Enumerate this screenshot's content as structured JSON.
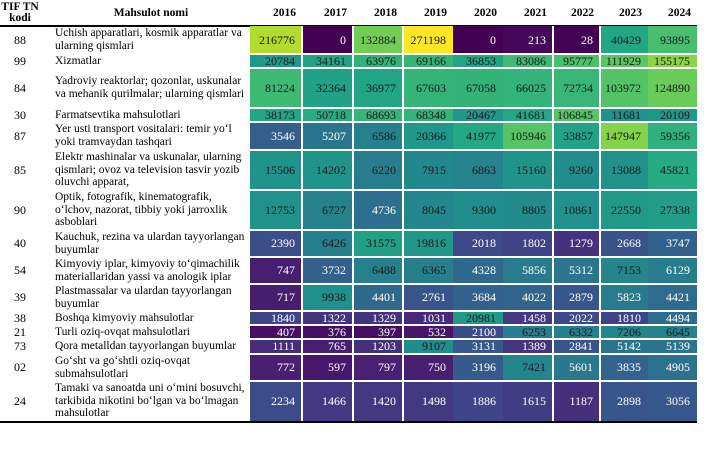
{
  "table": {
    "headers": {
      "code": "TIF TN kodi",
      "name": "Mahsulot nomi",
      "years": [
        "2016",
        "2017",
        "2018",
        "2019",
        "2020",
        "2021",
        "2022",
        "2023",
        "2024"
      ]
    },
    "colormap": {
      "name": "viridis",
      "low_color": "#440154",
      "high_color": "#fde725"
    },
    "rows": [
      {
        "code": "88",
        "name": "Uchish apparatlari, kosmik apparatlar va ularning qismlari",
        "values": [
          216776,
          0,
          132884,
          271198,
          0,
          213,
          28,
          40429,
          93895
        ]
      },
      {
        "code": "99",
        "name": "Xizmatlar",
        "values": [
          20784,
          34161,
          63976,
          69166,
          36853,
          83086,
          95777,
          111929,
          155175
        ]
      },
      {
        "code": "84",
        "name": "Yadroviy reaktorlar; qozonlar, uskunalar va mehanik qurilmalar; ularning qismlari",
        "values": [
          81224,
          32364,
          36977,
          67603,
          67058,
          66025,
          72734,
          103972,
          124890
        ]
      },
      {
        "code": "30",
        "name": "Farmatsevtika mahsulotlari",
        "values": [
          38173,
          50718,
          68693,
          68348,
          20467,
          41681,
          106845,
          11681,
          20109
        ]
      },
      {
        "code": "87",
        "name": "Yer usti transport vositalari: temir yo‘l yoki tramvaydan tashqari",
        "values": [
          3546,
          5207,
          6586,
          20366,
          41977,
          105946,
          33857,
          147947,
          59356
        ]
      },
      {
        "code": "85",
        "name": "Elektr mashinalar va uskunalar, ularning qismlari; ovoz va television tasvir yozib oluvchi apparat,",
        "values": [
          15506,
          14202,
          6220,
          7915,
          6863,
          15160,
          9260,
          13088,
          45821
        ]
      },
      {
        "code": "90",
        "name": "Optik, fotografik, kinematografik, o‘lchov, nazorat, tibbiy yoki jarroxlik asboblari",
        "values": [
          12753,
          6727,
          4736,
          8045,
          9300,
          8805,
          10861,
          22550,
          27338
        ]
      },
      {
        "code": "40",
        "name": "Kauchuk, rezina va ulardan tayyorlangan buyumlar",
        "values": [
          2390,
          6426,
          31575,
          19816,
          2018,
          1802,
          1279,
          2668,
          3747
        ]
      },
      {
        "code": "54",
        "name": "Kimyoviy iplar, kimyoviy to‘qimachilik materiallaridan yassi va anologik iplar",
        "values": [
          747,
          3732,
          6488,
          6365,
          4328,
          5856,
          5312,
          7153,
          6129
        ]
      },
      {
        "code": "39",
        "name": "Plastmassalar va ulardan tayyorlangan buyumlar",
        "values": [
          717,
          9938,
          4401,
          2761,
          3684,
          4022,
          2879,
          5823,
          4421
        ]
      },
      {
        "code": "38",
        "name": "Boshqa kimyoviy mahsulotlar",
        "values": [
          1840,
          1322,
          1329,
          1031,
          20981,
          1458,
          2022,
          1810,
          4494
        ]
      },
      {
        "code": "21",
        "name": "Turli oziq-ovqat mahsulotlari",
        "values": [
          407,
          376,
          397,
          532,
          2100,
          6253,
          6332,
          7206,
          6645
        ]
      },
      {
        "code": "73",
        "name": "Qora metalldan tayyorlangan buyumlar",
        "values": [
          1111,
          765,
          1203,
          9107,
          3131,
          1389,
          2841,
          5142,
          5139
        ]
      },
      {
        "code": "02",
        "name": "Go‘sht va go‘shtli oziq-ovqat submahsulotlari",
        "values": [
          772,
          597,
          797,
          750,
          3196,
          7421,
          5601,
          3835,
          4905
        ]
      },
      {
        "code": "24",
        "name": "Tamaki va sanoatda uni o‘mini bosuvchi, tarkibida nikotini bo‘lgan va bo‘lmagan mahsulotlar",
        "values": [
          2234,
          1466,
          1420,
          1498,
          1886,
          1615,
          1187,
          2898,
          3056
        ]
      }
    ]
  }
}
